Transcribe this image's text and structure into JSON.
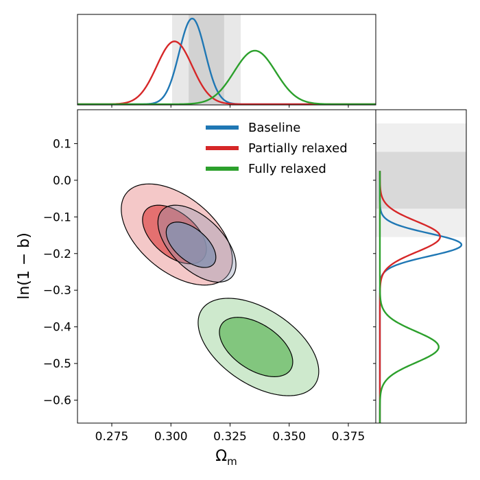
{
  "chart_data": {
    "type": "corner",
    "xlabel": "Ω",
    "xlabel_sub": "m",
    "ylabel": "ln(1 − b)",
    "xlim": [
      0.2605,
      0.3866
    ],
    "ylim": [
      -0.6626,
      0.1925
    ],
    "x_ticks": [
      0.275,
      0.3,
      0.325,
      0.35,
      0.375
    ],
    "x_tick_labels": [
      "0.275",
      "0.300",
      "0.325",
      "0.350",
      "0.375"
    ],
    "y_ticks": [
      0.1,
      0.0,
      -0.1,
      -0.2,
      -0.3,
      -0.4,
      -0.5,
      -0.6
    ],
    "y_tick_labels": [
      "0.1",
      "0.0",
      "−0.1",
      "−0.2",
      "−0.3",
      "−0.4",
      "−0.5",
      "−0.6"
    ],
    "legend": {
      "placement": "top-right"
    },
    "priors": {
      "omega_m_inner": [
        0.3075,
        0.3225
      ],
      "omega_m_outer": [
        0.3005,
        0.3295
      ],
      "ln1mb_inner": [
        -0.0775,
        0.0775
      ],
      "ln1mb_outer": [
        -0.155,
        0.155
      ]
    },
    "series": [
      {
        "name": "Baseline",
        "color": "#1f77b4",
        "fill_color": "#8a93b0",
        "omega_m": {
          "mean": 0.309,
          "sigma": 0.0055
        },
        "ln1mb": {
          "mean": -0.176,
          "sigma": 0.031
        },
        "contours": {
          "inner": {
            "center": [
              0.3085,
              -0.176
            ],
            "semi_axes": [
              0.0105,
              0.062
            ],
            "correlation": -0.55
          },
          "outer": {
            "center": [
              0.311,
              -0.173
            ],
            "semi_axes": [
              0.0165,
              0.105
            ],
            "correlation": -0.55
          }
        }
      },
      {
        "name": "Partially relaxed",
        "color": "#d62728",
        "fill_color": "#e06060",
        "omega_m": {
          "mean": 0.3015,
          "sigma": 0.0075
        },
        "ln1mb": {
          "mean": -0.154,
          "sigma": 0.042
        },
        "contours": {
          "inner": {
            "center": [
              0.3015,
              -0.148
            ],
            "semi_axes": [
              0.0135,
              0.08
            ],
            "correlation": -0.5
          },
          "outer": {
            "center": [
              0.3025,
              -0.148
            ],
            "semi_axes": [
              0.0235,
              0.138
            ],
            "correlation": -0.5
          }
        }
      },
      {
        "name": "Fully relaxed",
        "color": "#2ca02c",
        "fill_color": "#74c070",
        "omega_m": {
          "mean": 0.3355,
          "sigma": 0.0088
        },
        "ln1mb": {
          "mean": -0.455,
          "sigma": 0.043
        },
        "contours": {
          "inner": {
            "center": [
              0.336,
              -0.455
            ],
            "semi_axes": [
              0.0155,
              0.081
            ],
            "correlation": -0.5
          },
          "outer": {
            "center": [
              0.337,
              -0.455
            ],
            "semi_axes": [
              0.0255,
              0.133
            ],
            "correlation": -0.5
          }
        }
      }
    ]
  }
}
